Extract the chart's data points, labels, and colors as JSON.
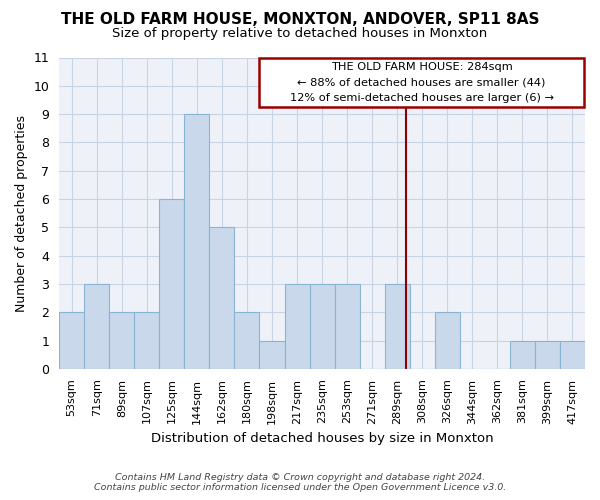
{
  "title": "THE OLD FARM HOUSE, MONXTON, ANDOVER, SP11 8AS",
  "subtitle": "Size of property relative to detached houses in Monxton",
  "xlabel": "Distribution of detached houses by size in Monxton",
  "ylabel": "Number of detached properties",
  "bar_labels": [
    "53sqm",
    "71sqm",
    "89sqm",
    "107sqm",
    "125sqm",
    "144sqm",
    "162sqm",
    "180sqm",
    "198sqm",
    "217sqm",
    "235sqm",
    "253sqm",
    "271sqm",
    "289sqm",
    "308sqm",
    "326sqm",
    "344sqm",
    "362sqm",
    "381sqm",
    "399sqm",
    "417sqm"
  ],
  "bar_values": [
    2,
    3,
    2,
    2,
    6,
    9,
    5,
    2,
    1,
    3,
    3,
    3,
    0,
    3,
    0,
    2,
    0,
    0,
    1,
    1,
    1
  ],
  "bar_color": "#c9d9eb",
  "bar_edge_color": "#8ab4d4",
  "vline_position": 13.35,
  "vline_color": "#900000",
  "annotation_text": "THE OLD FARM HOUSE: 284sqm\n← 88% of detached houses are smaller (44)\n12% of semi-detached houses are larger (6) →",
  "annotation_box_color": "#990000",
  "ylim": [
    0,
    11
  ],
  "yticks": [
    0,
    1,
    2,
    3,
    4,
    5,
    6,
    7,
    8,
    9,
    10,
    11
  ],
  "grid_color": "#c8d4e4",
  "bg_color": "#eef2f8",
  "footer": "Contains HM Land Registry data © Crown copyright and database right 2024.\nContains public sector information licensed under the Open Government Licence v3.0."
}
